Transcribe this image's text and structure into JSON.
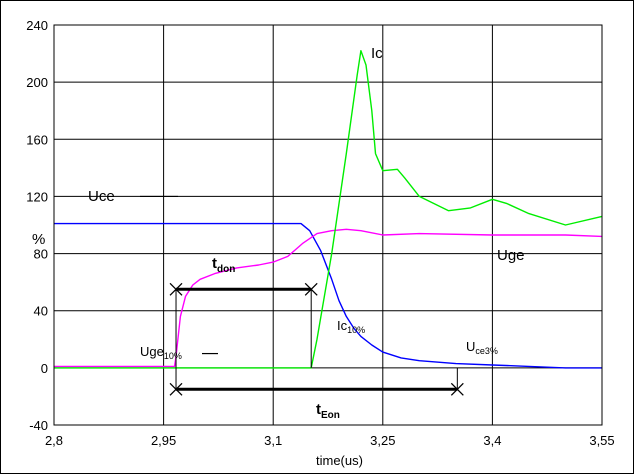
{
  "chart_data": {
    "type": "line",
    "xlabel": "time(us)",
    "ylabel": "%",
    "xlim": [
      2.8,
      3.55
    ],
    "ylim": [
      -40,
      240
    ],
    "grid": true,
    "x_ticks": [
      "2,8",
      "2,95",
      "3,1",
      "3,25",
      "3,4",
      "3,55"
    ],
    "x_tick_values": [
      2.8,
      2.95,
      3.1,
      3.25,
      3.4,
      3.55
    ],
    "y_ticks": [
      "-40",
      "0",
      "40",
      "80",
      "120",
      "160",
      "200",
      "240"
    ],
    "y_tick_values": [
      -40,
      0,
      40,
      80,
      120,
      160,
      200,
      240
    ],
    "series": [
      {
        "name": "Uce",
        "color": "#0000ff",
        "x": [
          2.8,
          2.9,
          3.0,
          3.1,
          3.138,
          3.15,
          3.165,
          3.18,
          3.19,
          3.2,
          3.21,
          3.22,
          3.235,
          3.25,
          3.275,
          3.3,
          3.35,
          3.4,
          3.45,
          3.5,
          3.55
        ],
        "y": [
          101,
          101,
          101,
          101,
          101,
          96,
          82,
          62,
          47,
          36,
          28,
          22,
          16,
          11,
          7,
          5,
          3,
          2,
          1,
          0,
          0
        ]
      },
      {
        "name": "Uge",
        "color": "#ff00ff",
        "x": [
          2.8,
          2.9,
          2.965,
          2.967,
          2.973,
          2.98,
          2.99,
          3.0,
          3.02,
          3.05,
          3.08,
          3.1,
          3.12,
          3.14,
          3.16,
          3.18,
          3.2,
          3.22,
          3.25,
          3.3,
          3.4,
          3.5,
          3.55
        ],
        "y": [
          1,
          1,
          1,
          8,
          36,
          50,
          58,
          62,
          66,
          70,
          72,
          74,
          78,
          87,
          94,
          96,
          97,
          96,
          93,
          94,
          93,
          93,
          92
        ]
      },
      {
        "name": "Ic",
        "color": "#00ee00",
        "x": [
          2.8,
          2.9,
          3.0,
          3.1,
          3.152,
          3.16,
          3.18,
          3.2,
          3.215,
          3.22,
          3.227,
          3.235,
          3.24,
          3.25,
          3.27,
          3.28,
          3.3,
          3.34,
          3.37,
          3.4,
          3.42,
          3.45,
          3.5,
          3.55
        ],
        "y": [
          0,
          0,
          0,
          0,
          0,
          20,
          80,
          150,
          205,
          222,
          212,
          180,
          150,
          138,
          139,
          133,
          120,
          110,
          112,
          118,
          115,
          108,
          100,
          106
        ]
      }
    ],
    "annotations": {
      "uce": "Uce",
      "ic": "Ic",
      "uge": "Uge",
      "tdon_main": "t",
      "tdon_sub": "don",
      "teon_main": "t",
      "teon_sub": "Eon",
      "uge10_main": "Uge",
      "uge10_sub": "10%",
      "ic10_main": "Ic",
      "ic10_sub": "10%",
      "uce3_main": "U",
      "uce3_sub": "ce3%"
    },
    "markers": {
      "tdon": {
        "start": 2.967,
        "end": 3.152,
        "level": 55
      },
      "teon": {
        "start": 2.967,
        "end": 3.352,
        "level": -15
      }
    }
  }
}
